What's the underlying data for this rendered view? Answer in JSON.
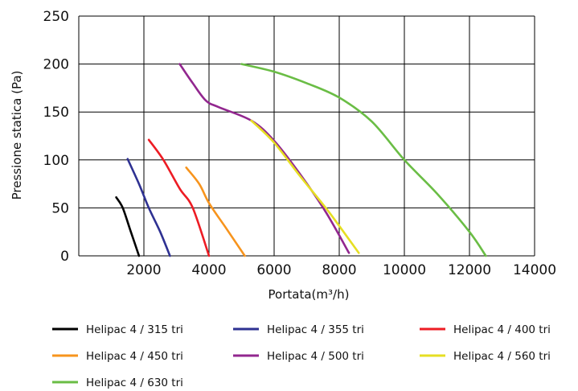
{
  "chart_data": {
    "type": "line",
    "xlabel": "Portata(m³/h)",
    "ylabel": "Pressione statica (Pa)",
    "xlim": [
      0,
      14000
    ],
    "ylim": [
      0,
      250
    ],
    "x_ticks": [
      2000,
      4000,
      6000,
      8000,
      10000,
      12000,
      14000
    ],
    "y_ticks": [
      0,
      50,
      100,
      150,
      200,
      250
    ],
    "grid": true,
    "legend_position": "bottom",
    "series": [
      {
        "name": "Helipac 4 / 315 tri",
        "color": "#000000",
        "points": [
          [
            1150,
            61
          ],
          [
            1350,
            50
          ],
          [
            1600,
            25
          ],
          [
            1850,
            0
          ]
        ]
      },
      {
        "name": "Helipac 4 / 355 tri",
        "color": "#2e3192",
        "points": [
          [
            1500,
            101
          ],
          [
            1850,
            75
          ],
          [
            2150,
            50
          ],
          [
            2500,
            25
          ],
          [
            2800,
            0
          ]
        ]
      },
      {
        "name": "Helipac 4 / 400 tri",
        "color": "#ed1c24",
        "points": [
          [
            2150,
            121
          ],
          [
            2600,
            100
          ],
          [
            3100,
            70
          ],
          [
            3500,
            50
          ],
          [
            4000,
            0
          ]
        ]
      },
      {
        "name": "Helipac 4 / 450 tri",
        "color": "#f7941d",
        "points": [
          [
            3300,
            92
          ],
          [
            3700,
            75
          ],
          [
            4000,
            55
          ],
          [
            4500,
            30
          ],
          [
            5100,
            0
          ]
        ]
      },
      {
        "name": "Helipac 4 / 500 tri",
        "color": "#92278f",
        "points": [
          [
            3100,
            200
          ],
          [
            3500,
            180
          ],
          [
            3900,
            162
          ],
          [
            4300,
            155
          ],
          [
            5300,
            141
          ],
          [
            6000,
            120
          ],
          [
            6800,
            85
          ],
          [
            7600,
            45
          ],
          [
            8300,
            3
          ]
        ]
      },
      {
        "name": "Helipac 4 / 560 tri",
        "color": "#e6df23",
        "points": [
          [
            5300,
            141
          ],
          [
            6000,
            118
          ],
          [
            6800,
            83
          ],
          [
            7700,
            45
          ],
          [
            8600,
            3
          ]
        ]
      },
      {
        "name": "Helipac 4 / 630 tri",
        "color": "#6abd45",
        "points": [
          [
            5000,
            200
          ],
          [
            6000,
            192
          ],
          [
            7000,
            180
          ],
          [
            8000,
            165
          ],
          [
            9000,
            140
          ],
          [
            10000,
            100
          ],
          [
            11000,
            65
          ],
          [
            12000,
            25
          ],
          [
            12500,
            0
          ]
        ]
      }
    ]
  }
}
